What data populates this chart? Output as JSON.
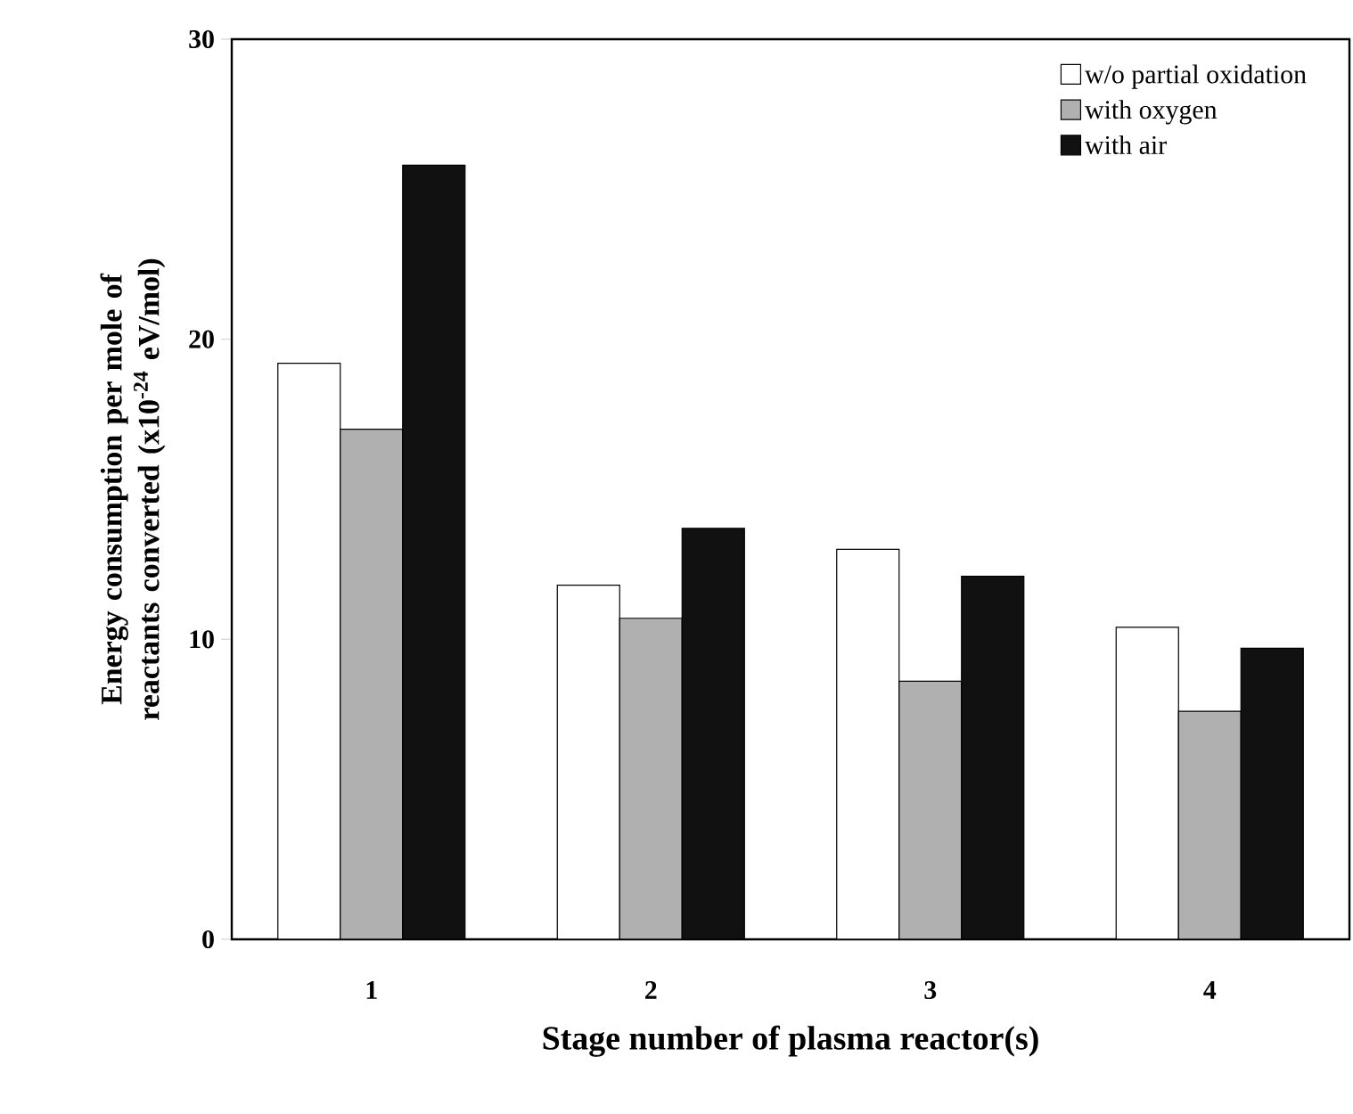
{
  "chart_data": {
    "type": "bar",
    "xlabel": "Stage number of plasma reactor(s)",
    "ylabel": "Energy consumption per mole of reactants converted (x10$^{-24}$ eV/mol)",
    "categories": [
      "1",
      "2",
      "3",
      "4"
    ],
    "series": [
      {
        "name": "w/o partial oxidation",
        "color": "#ffffff",
        "values": [
          19.2,
          11.8,
          13.0,
          10.4
        ]
      },
      {
        "name": "with oxygen",
        "color": "#b0b0b0",
        "values": [
          17.0,
          10.7,
          8.6,
          7.6
        ]
      },
      {
        "name": "with air",
        "color": "#111111",
        "values": [
          25.8,
          13.7,
          12.1,
          9.7
        ]
      }
    ],
    "ylim": [
      0,
      30
    ],
    "yticks": [
      0,
      10,
      20,
      30
    ],
    "grid": false,
    "legend": "top right"
  }
}
